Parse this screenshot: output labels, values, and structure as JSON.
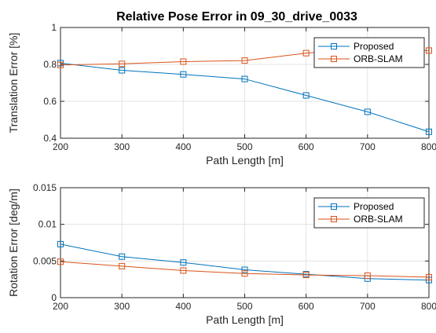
{
  "chart_data": [
    {
      "type": "line",
      "title": "Relative Pose Error in 09_30_drive_0033",
      "xlabel": "Path Length [m]",
      "ylabel": "Translation Error [%]",
      "x": [
        200,
        300,
        400,
        500,
        600,
        700,
        800
      ],
      "xlim": [
        200,
        800
      ],
      "ylim": [
        0.4,
        1.0
      ],
      "xticks": [
        "200",
        "300",
        "400",
        "500",
        "600",
        "700",
        "800"
      ],
      "yticks": [
        "0.4",
        "0.6",
        "0.8",
        "1"
      ],
      "ytick_values": [
        0.4,
        0.6,
        0.8,
        1.0
      ],
      "grid": true,
      "legend_position": "top-right",
      "series": [
        {
          "name": "Proposed",
          "color": "#0072BD",
          "marker": "square",
          "values": [
            0.807,
            0.768,
            0.746,
            0.721,
            0.632,
            0.543,
            0.435
          ]
        },
        {
          "name": "ORB-SLAM",
          "color": "#D95319",
          "marker": "square",
          "values": [
            0.797,
            0.803,
            0.815,
            0.821,
            0.861,
            0.886,
            0.875
          ]
        }
      ]
    },
    {
      "type": "line",
      "title": "",
      "xlabel": "Path Length [m]",
      "ylabel": "Rotation Error [deg/m]",
      "x": [
        200,
        300,
        400,
        500,
        600,
        700,
        800
      ],
      "xlim": [
        200,
        800
      ],
      "ylim": [
        0,
        0.015
      ],
      "xticks": [
        "200",
        "300",
        "400",
        "500",
        "600",
        "700",
        "800"
      ],
      "yticks": [
        "0",
        "0.005",
        "0.01",
        "0.015"
      ],
      "ytick_values": [
        0,
        0.005,
        0.01,
        0.015
      ],
      "grid": true,
      "legend_position": "top-right",
      "series": [
        {
          "name": "Proposed",
          "color": "#0072BD",
          "marker": "square",
          "values": [
            0.0073,
            0.0056,
            0.0048,
            0.0038,
            0.0032,
            0.0026,
            0.0024
          ]
        },
        {
          "name": "ORB-SLAM",
          "color": "#D95319",
          "marker": "square",
          "values": [
            0.0049,
            0.0043,
            0.0037,
            0.0033,
            0.0031,
            0.003,
            0.0028
          ]
        }
      ]
    }
  ]
}
